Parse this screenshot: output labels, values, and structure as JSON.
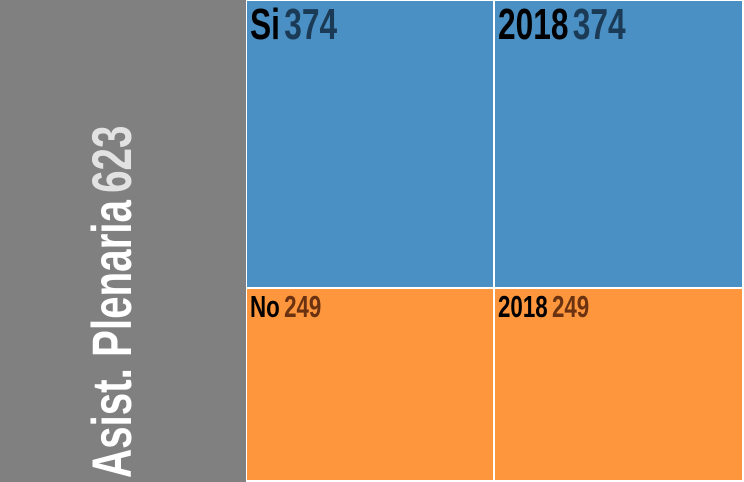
{
  "chart_data": {
    "type": "treemap",
    "root": {
      "label": "Asist. Plenaria",
      "value": 623
    },
    "nodes": [
      {
        "label": "Si",
        "value": 374,
        "children": [
          {
            "label": "2018",
            "value": 374
          }
        ]
      },
      {
        "label": "No",
        "value": 249,
        "children": [
          {
            "label": "2018",
            "value": 249
          }
        ]
      }
    ],
    "colors": {
      "root": "#808080",
      "Si": "#4a90c4",
      "No": "#fd963c"
    }
  },
  "labels": {
    "root_name": "Asist. Plenaria",
    "root_value": "623",
    "si_name": "Si",
    "si_value": "374",
    "si_year": "2018",
    "si_year_value": "374",
    "no_name": "No",
    "no_value": "249",
    "no_year": "2018",
    "no_year_value": "249"
  }
}
